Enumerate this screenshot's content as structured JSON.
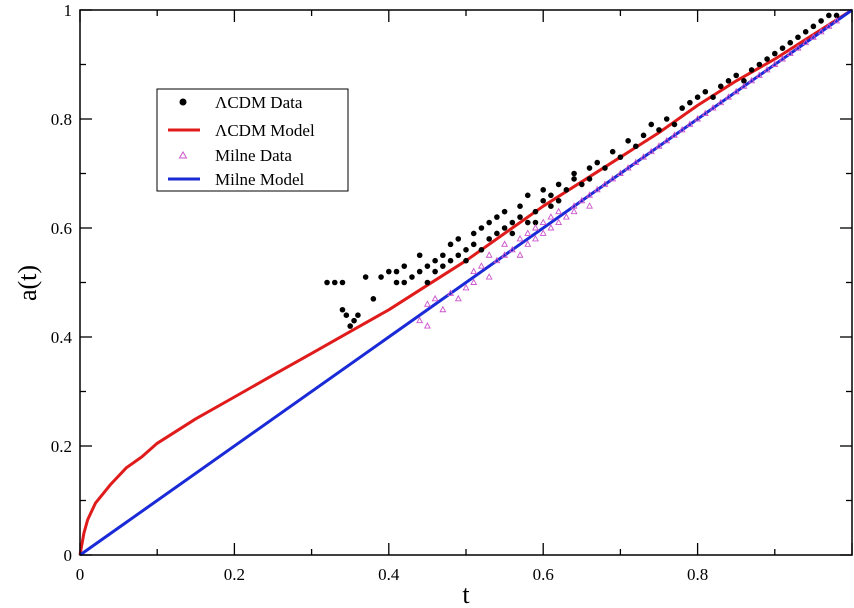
{
  "chart_data": {
    "type": "scatter",
    "xlabel": "t",
    "ylabel": "a(t)",
    "xlim": [
      0,
      1
    ],
    "ylim": [
      0,
      1
    ],
    "x_ticks": [
      "0",
      "0.2",
      "0.4",
      "0.6",
      "0.8"
    ],
    "y_ticks": [
      "0",
      "0.2",
      "0.4",
      "0.6",
      "0.8",
      "1"
    ],
    "grid": false,
    "legend_position": "top-left",
    "legend": [
      {
        "label": "ΛCDM Data",
        "marker": "dot",
        "color": "#000000"
      },
      {
        "label": "ΛCDM Model",
        "marker": "line",
        "color": "#e01b1b"
      },
      {
        "label": "Milne Data",
        "marker": "triangle",
        "color": "#cc55cc"
      },
      {
        "label": "Milne Model",
        "marker": "line",
        "color": "#1a2ad6"
      }
    ],
    "series": [
      {
        "name": "ΛCDM Data",
        "kind": "scatter",
        "color": "#000000",
        "points": [
          [
            0.32,
            0.5
          ],
          [
            0.33,
            0.5
          ],
          [
            0.34,
            0.45
          ],
          [
            0.345,
            0.44
          ],
          [
            0.35,
            0.42
          ],
          [
            0.355,
            0.43
          ],
          [
            0.36,
            0.44
          ],
          [
            0.34,
            0.5
          ],
          [
            0.37,
            0.51
          ],
          [
            0.38,
            0.47
          ],
          [
            0.39,
            0.51
          ],
          [
            0.4,
            0.52
          ],
          [
            0.41,
            0.5
          ],
          [
            0.41,
            0.52
          ],
          [
            0.42,
            0.53
          ],
          [
            0.42,
            0.5
          ],
          [
            0.43,
            0.51
          ],
          [
            0.44,
            0.55
          ],
          [
            0.44,
            0.52
          ],
          [
            0.45,
            0.53
          ],
          [
            0.45,
            0.5
          ],
          [
            0.46,
            0.54
          ],
          [
            0.46,
            0.52
          ],
          [
            0.47,
            0.55
          ],
          [
            0.47,
            0.53
          ],
          [
            0.48,
            0.54
          ],
          [
            0.48,
            0.57
          ],
          [
            0.49,
            0.55
          ],
          [
            0.49,
            0.58
          ],
          [
            0.5,
            0.56
          ],
          [
            0.5,
            0.54
          ],
          [
            0.51,
            0.59
          ],
          [
            0.51,
            0.57
          ],
          [
            0.52,
            0.56
          ],
          [
            0.52,
            0.6
          ],
          [
            0.53,
            0.58
          ],
          [
            0.53,
            0.61
          ],
          [
            0.54,
            0.59
          ],
          [
            0.54,
            0.62
          ],
          [
            0.55,
            0.6
          ],
          [
            0.55,
            0.63
          ],
          [
            0.56,
            0.61
          ],
          [
            0.56,
            0.59
          ],
          [
            0.57,
            0.62
          ],
          [
            0.57,
            0.64
          ],
          [
            0.58,
            0.61
          ],
          [
            0.58,
            0.66
          ],
          [
            0.59,
            0.63
          ],
          [
            0.59,
            0.61
          ],
          [
            0.6,
            0.65
          ],
          [
            0.6,
            0.67
          ],
          [
            0.61,
            0.64
          ],
          [
            0.61,
            0.66
          ],
          [
            0.62,
            0.65
          ],
          [
            0.62,
            0.68
          ],
          [
            0.63,
            0.67
          ],
          [
            0.64,
            0.69
          ],
          [
            0.64,
            0.7
          ],
          [
            0.65,
            0.68
          ],
          [
            0.66,
            0.71
          ],
          [
            0.66,
            0.69
          ],
          [
            0.67,
            0.72
          ],
          [
            0.68,
            0.71
          ],
          [
            0.69,
            0.74
          ],
          [
            0.7,
            0.73
          ],
          [
            0.71,
            0.76
          ],
          [
            0.72,
            0.75
          ],
          [
            0.73,
            0.77
          ],
          [
            0.74,
            0.79
          ],
          [
            0.75,
            0.78
          ],
          [
            0.76,
            0.8
          ],
          [
            0.77,
            0.79
          ],
          [
            0.78,
            0.82
          ],
          [
            0.79,
            0.83
          ],
          [
            0.8,
            0.84
          ],
          [
            0.81,
            0.85
          ],
          [
            0.82,
            0.84
          ],
          [
            0.83,
            0.86
          ],
          [
            0.84,
            0.87
          ],
          [
            0.85,
            0.88
          ],
          [
            0.86,
            0.87
          ],
          [
            0.87,
            0.89
          ],
          [
            0.88,
            0.9
          ],
          [
            0.89,
            0.91
          ],
          [
            0.9,
            0.92
          ],
          [
            0.91,
            0.93
          ],
          [
            0.92,
            0.94
          ],
          [
            0.93,
            0.95
          ],
          [
            0.94,
            0.96
          ],
          [
            0.95,
            0.97
          ],
          [
            0.96,
            0.98
          ],
          [
            0.97,
            0.99
          ],
          [
            0.98,
            0.99
          ]
        ]
      },
      {
        "name": "ΛCDM Model",
        "kind": "line",
        "color": "#e01b1b",
        "width": 3,
        "points": [
          [
            0,
            0
          ],
          [
            0.005,
            0.04
          ],
          [
            0.01,
            0.065
          ],
          [
            0.02,
            0.095
          ],
          [
            0.04,
            0.13
          ],
          [
            0.06,
            0.16
          ],
          [
            0.08,
            0.18
          ],
          [
            0.1,
            0.205
          ],
          [
            0.15,
            0.25
          ],
          [
            0.2,
            0.29
          ],
          [
            0.25,
            0.33
          ],
          [
            0.3,
            0.37
          ],
          [
            0.35,
            0.41
          ],
          [
            0.4,
            0.45
          ],
          [
            0.45,
            0.495
          ],
          [
            0.5,
            0.54
          ],
          [
            0.55,
            0.59
          ],
          [
            0.6,
            0.64
          ],
          [
            0.65,
            0.685
          ],
          [
            0.7,
            0.73
          ],
          [
            0.75,
            0.775
          ],
          [
            0.8,
            0.825
          ],
          [
            0.85,
            0.87
          ],
          [
            0.9,
            0.91
          ],
          [
            0.95,
            0.955
          ],
          [
            1,
            1
          ]
        ]
      },
      {
        "name": "Milne Data",
        "kind": "scatter",
        "color": "#cc55cc",
        "points": [
          [
            0.44,
            0.43
          ],
          [
            0.45,
            0.42
          ],
          [
            0.45,
            0.46
          ],
          [
            0.46,
            0.47
          ],
          [
            0.47,
            0.45
          ],
          [
            0.48,
            0.48
          ],
          [
            0.49,
            0.47
          ],
          [
            0.5,
            0.49
          ],
          [
            0.51,
            0.52
          ],
          [
            0.51,
            0.5
          ],
          [
            0.52,
            0.53
          ],
          [
            0.53,
            0.51
          ],
          [
            0.53,
            0.55
          ],
          [
            0.54,
            0.54
          ],
          [
            0.55,
            0.57
          ],
          [
            0.55,
            0.55
          ],
          [
            0.56,
            0.56
          ],
          [
            0.57,
            0.58
          ],
          [
            0.57,
            0.55
          ],
          [
            0.58,
            0.59
          ],
          [
            0.58,
            0.57
          ],
          [
            0.59,
            0.6
          ],
          [
            0.59,
            0.58
          ],
          [
            0.6,
            0.61
          ],
          [
            0.6,
            0.59
          ],
          [
            0.61,
            0.62
          ],
          [
            0.61,
            0.6
          ],
          [
            0.62,
            0.63
          ],
          [
            0.62,
            0.61
          ],
          [
            0.63,
            0.62
          ],
          [
            0.64,
            0.64
          ],
          [
            0.64,
            0.63
          ],
          [
            0.65,
            0.65
          ],
          [
            0.66,
            0.66
          ],
          [
            0.66,
            0.64
          ],
          [
            0.67,
            0.67
          ],
          [
            0.68,
            0.68
          ],
          [
            0.69,
            0.69
          ],
          [
            0.7,
            0.7
          ],
          [
            0.71,
            0.71
          ],
          [
            0.72,
            0.72
          ],
          [
            0.73,
            0.73
          ],
          [
            0.74,
            0.74
          ],
          [
            0.75,
            0.75
          ],
          [
            0.76,
            0.76
          ],
          [
            0.77,
            0.77
          ],
          [
            0.78,
            0.78
          ],
          [
            0.79,
            0.79
          ],
          [
            0.8,
            0.8
          ],
          [
            0.81,
            0.81
          ],
          [
            0.82,
            0.82
          ],
          [
            0.83,
            0.83
          ],
          [
            0.84,
            0.84
          ],
          [
            0.85,
            0.85
          ],
          [
            0.86,
            0.86
          ],
          [
            0.87,
            0.87
          ],
          [
            0.88,
            0.88
          ],
          [
            0.89,
            0.89
          ],
          [
            0.9,
            0.9
          ],
          [
            0.91,
            0.91
          ],
          [
            0.92,
            0.92
          ],
          [
            0.93,
            0.93
          ],
          [
            0.94,
            0.94
          ],
          [
            0.95,
            0.95
          ],
          [
            0.96,
            0.96
          ],
          [
            0.97,
            0.97
          ],
          [
            0.98,
            0.98
          ]
        ]
      },
      {
        "name": "Milne Model",
        "kind": "line",
        "color": "#1a2ad6",
        "width": 3,
        "points": [
          [
            0,
            0
          ],
          [
            1,
            1
          ]
        ]
      }
    ]
  }
}
